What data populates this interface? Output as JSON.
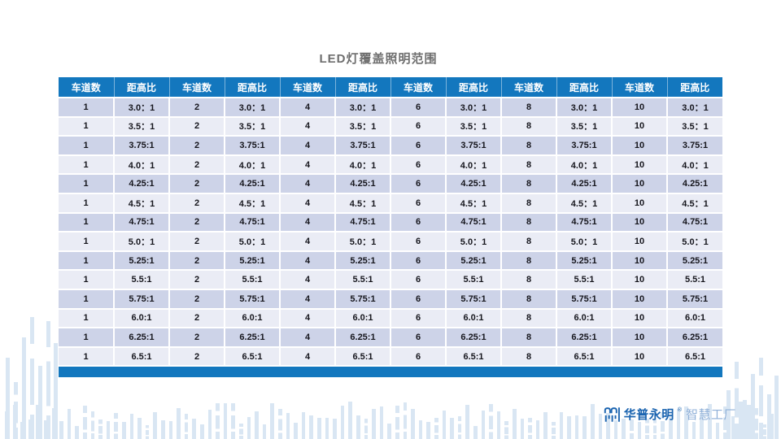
{
  "page": {
    "title": "LED灯覆盖照明范围"
  },
  "table": {
    "column_headers": [
      "车道数",
      "距高比",
      "车道数",
      "距高比",
      "车道数",
      "距高比",
      "车道数",
      "距高比",
      "车道数",
      "距高比",
      "车道数",
      "距高比"
    ],
    "lane_counts": [
      "1",
      "2",
      "4",
      "6",
      "8",
      "10"
    ],
    "ratio_rows": [
      "3.0：1",
      "3.5：1",
      "3.75:1",
      "4.0：1",
      "4.25:1",
      "4.5：1",
      "4.75:1",
      "5.0：1",
      "5.25:1",
      "5.5:1",
      "5.75:1",
      "6.0:1",
      "6.25:1",
      "6.5:1"
    ]
  },
  "branding": {
    "brand_name": "华普永明",
    "registered_mark": "®",
    "brand_suffix": "智慧工厂"
  },
  "colors": {
    "accent_blue": "#1377BE",
    "row_band_dark": "#CDD3E8",
    "row_band_light": "#EAECF5",
    "brand_blue": "#1B64B0",
    "brand_suffix_blue": "#8FB0D8",
    "deco_bar_blue": "#D9E6F3"
  }
}
